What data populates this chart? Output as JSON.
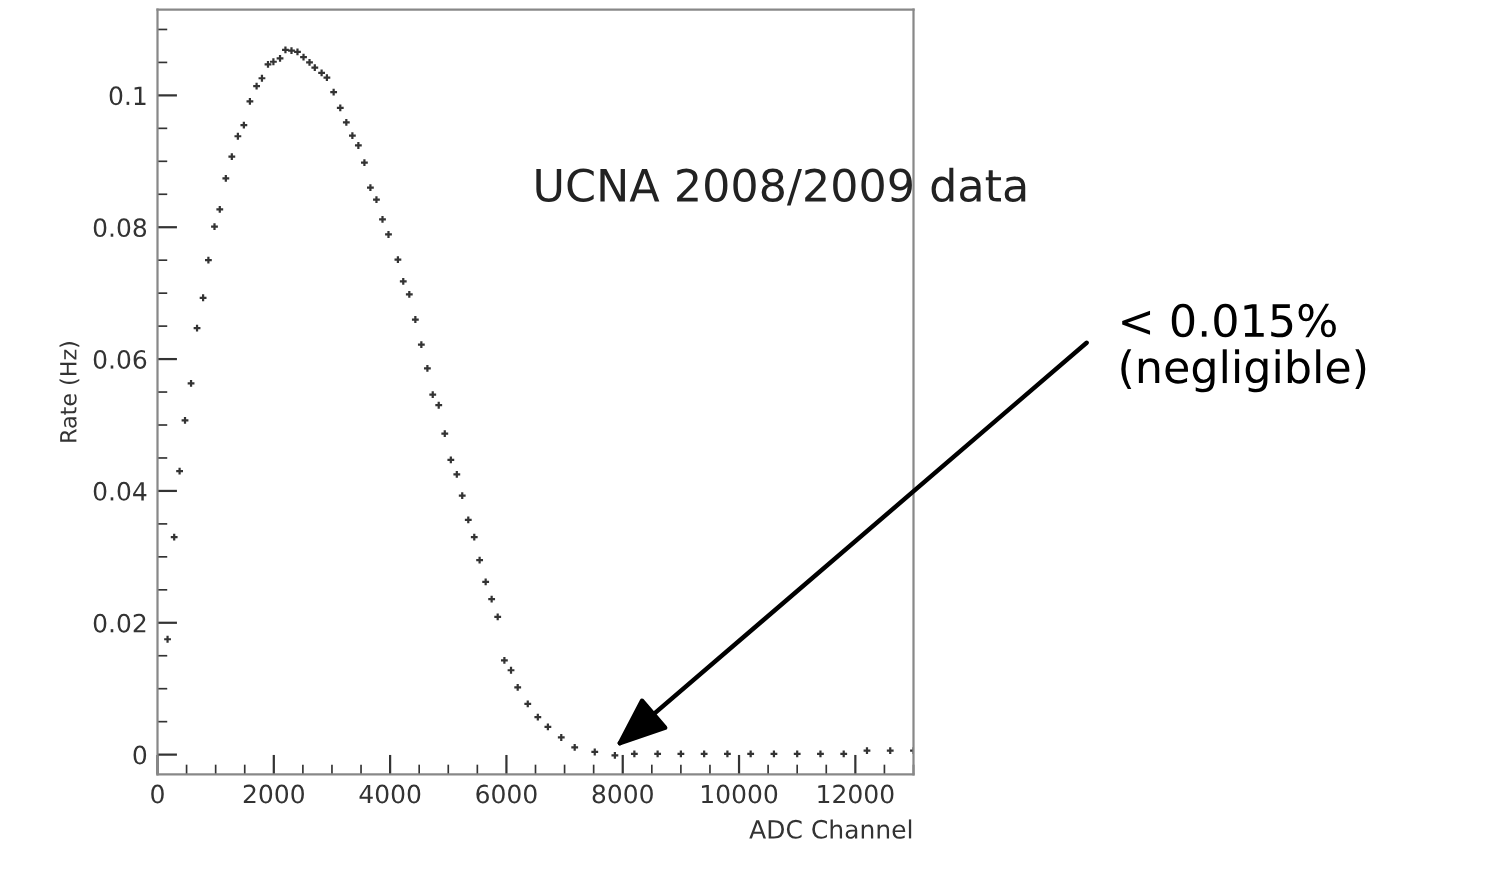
{
  "chart_data": {
    "type": "scatter",
    "xlabel": "ADC Channel",
    "ylabel": "Rate (Hz)",
    "marker": "cross",
    "grid": false,
    "xlim": [
      0,
      13000
    ],
    "ylim": [
      -0.003,
      0.113
    ],
    "xticks": [
      0,
      2000,
      4000,
      6000,
      8000,
      10000,
      12000
    ],
    "yticks": [
      0,
      0.02,
      0.04,
      0.06,
      0.08,
      0.1
    ],
    "annotations": [
      "UCNA 2008/2009 data",
      {
        "text": "< 0.015%\n(negligible)",
        "x": 7800,
        "y": 0.0006
      }
    ],
    "series": [
      {
        "color": "#333333",
        "x": [
          173,
          287,
          380,
          473,
          577,
          680,
          784,
          875,
          980,
          1071,
          1175,
          1278,
          1382,
          1485,
          1589,
          1704,
          1796,
          1900,
          1993,
          2107,
          2200,
          2304,
          2407,
          2511,
          2614,
          2705,
          2822,
          2913,
          3029,
          3143,
          3247,
          3351,
          3454,
          3558,
          3661,
          3765,
          3869,
          3972,
          4134,
          4226,
          4330,
          4434,
          4537,
          4641,
          4733,
          4836,
          4940,
          5044,
          5147,
          5240,
          5344,
          5447,
          5539,
          5643,
          5746,
          5850,
          5965,
          6079,
          6194,
          6367,
          6540,
          6713,
          6943,
          7174,
          7519,
          7865,
          8200,
          8600,
          9000,
          9400,
          9800,
          10200,
          10600,
          11000,
          11400,
          11800,
          12200,
          12600,
          13000
        ],
        "values": [
          0.0175,
          0.033,
          0.043,
          0.0507,
          0.0563,
          0.0647,
          0.0693,
          0.075,
          0.0801,
          0.0827,
          0.0874,
          0.0907,
          0.0938,
          0.0955,
          0.0991,
          0.1014,
          0.1026,
          0.1047,
          0.1051,
          0.1056,
          0.1069,
          0.1068,
          0.1066,
          0.1058,
          0.105,
          0.1042,
          0.1034,
          0.1027,
          0.1005,
          0.0981,
          0.0959,
          0.0939,
          0.0924,
          0.0898,
          0.086,
          0.0842,
          0.0812,
          0.0789,
          0.0751,
          0.0718,
          0.0698,
          0.066,
          0.0622,
          0.0586,
          0.0546,
          0.053,
          0.0487,
          0.0447,
          0.0425,
          0.0393,
          0.0356,
          0.033,
          0.0295,
          0.0262,
          0.0236,
          0.0209,
          0.0143,
          0.0128,
          0.0102,
          0.0077,
          0.0057,
          0.0042,
          0.0026,
          0.0011,
          0.0004,
          -0.0001,
          0.0001,
          0.0001,
          0.0001,
          0.0001,
          0.0001,
          0.0001,
          0.0001,
          0.0001,
          0.0001,
          0.0001,
          0.0006,
          0.0006,
          0.0006
        ]
      }
    ]
  }
}
